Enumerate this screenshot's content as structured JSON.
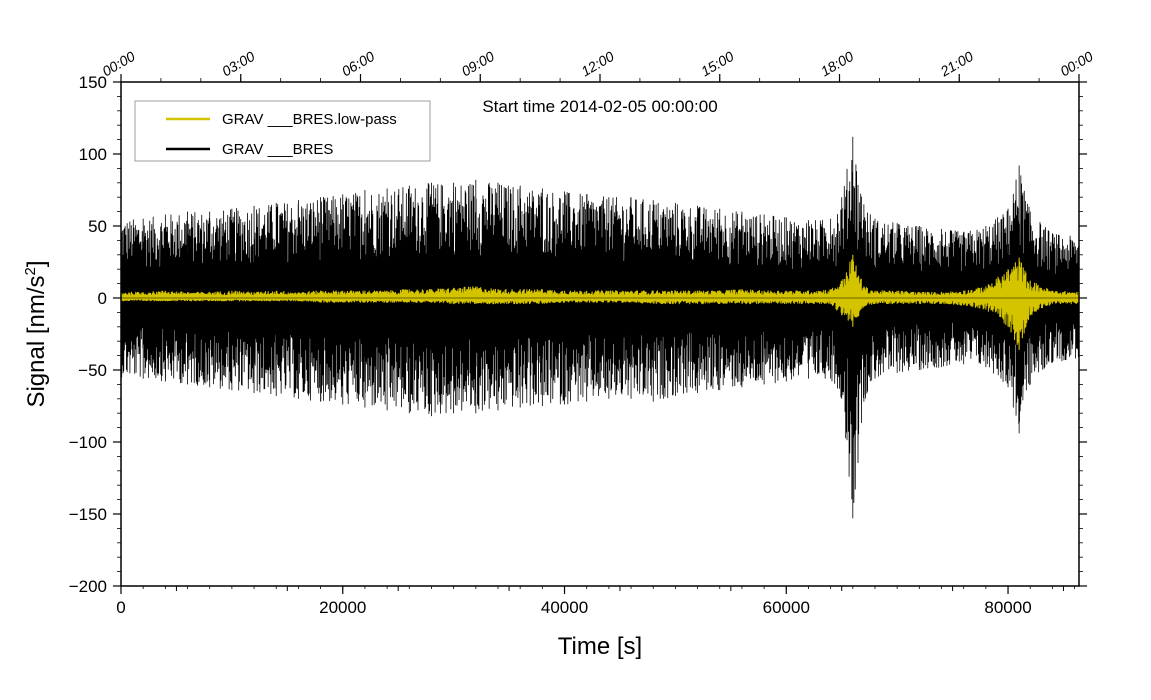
{
  "chart_data": {
    "type": "line",
    "annotation": "Start time 2014-02-05 00:00:00",
    "xlabel": "Time [s]",
    "ylabel_main": "Signal [nm/s",
    "ylabel_sup": "2",
    "ylabel_end": "]",
    "xlim": [
      0,
      86400
    ],
    "ylim": [
      -200,
      150
    ],
    "grid": false,
    "legend_position": "top-left",
    "x_ticks": [
      {
        "value": 0,
        "label": "0"
      },
      {
        "value": 20000,
        "label": "20000"
      },
      {
        "value": 40000,
        "label": "40000"
      },
      {
        "value": 60000,
        "label": "60000"
      },
      {
        "value": 80000,
        "label": "80000"
      }
    ],
    "y_ticks": [
      {
        "value": 150,
        "label": "150"
      },
      {
        "value": 100,
        "label": "100"
      },
      {
        "value": 50,
        "label": "50"
      },
      {
        "value": 0,
        "label": "0"
      },
      {
        "value": -50,
        "label": "−50"
      },
      {
        "value": -100,
        "label": "−100"
      },
      {
        "value": -150,
        "label": "−150"
      },
      {
        "value": -200,
        "label": "−200"
      }
    ],
    "top_axis_ticks": [
      {
        "value": 0,
        "label": "00:00"
      },
      {
        "value": 10800,
        "label": "03:00"
      },
      {
        "value": 21600,
        "label": "06:00"
      },
      {
        "value": 32400,
        "label": "09:00"
      },
      {
        "value": 43200,
        "label": "12:00"
      },
      {
        "value": 54000,
        "label": "15:00"
      },
      {
        "value": 64800,
        "label": "18:00"
      },
      {
        "value": 75600,
        "label": "21:00"
      },
      {
        "value": 86400,
        "label": "00:00"
      }
    ],
    "series": [
      {
        "name": "GRAV ___BRES",
        "color": "#000000",
        "x": [
          0,
          2000,
          4000,
          6000,
          8000,
          10000,
          12000,
          14000,
          16000,
          18000,
          20000,
          22000,
          24000,
          26000,
          28000,
          30000,
          32000,
          34000,
          36000,
          38000,
          40000,
          42000,
          44000,
          46000,
          48000,
          50000,
          52000,
          54000,
          56000,
          58000,
          60000,
          62000,
          64000,
          65000,
          66000,
          67000,
          68000,
          70000,
          72000,
          74000,
          76000,
          78000,
          80000,
          81000,
          82000,
          84000,
          86400
        ],
        "upper": [
          55,
          55,
          58,
          60,
          60,
          62,
          64,
          66,
          68,
          70,
          72,
          75,
          76,
          78,
          80,
          80,
          82,
          80,
          78,
          76,
          74,
          72,
          70,
          70,
          68,
          66,
          64,
          62,
          60,
          58,
          56,
          54,
          55,
          70,
          112,
          65,
          55,
          52,
          50,
          48,
          46,
          50,
          62,
          92,
          60,
          45,
          42
        ],
        "lower": [
          -55,
          -56,
          -58,
          -60,
          -62,
          -64,
          -66,
          -68,
          -70,
          -72,
          -74,
          -76,
          -78,
          -80,
          -82,
          -80,
          -80,
          -78,
          -76,
          -75,
          -74,
          -72,
          -70,
          -70,
          -72,
          -68,
          -66,
          -64,
          -62,
          -60,
          -58,
          -56,
          -56,
          -70,
          -153,
          -72,
          -56,
          -52,
          -50,
          -48,
          -46,
          -48,
          -62,
          -94,
          -60,
          -45,
          -42
        ]
      },
      {
        "name": "GRAV ___BRES.low-pass",
        "color": "#d4c400",
        "x": [
          0,
          2000,
          4000,
          6000,
          8000,
          10000,
          12000,
          14000,
          16000,
          18000,
          20000,
          22000,
          24000,
          26000,
          28000,
          30000,
          32000,
          34000,
          36000,
          38000,
          40000,
          42000,
          44000,
          46000,
          48000,
          50000,
          52000,
          54000,
          56000,
          58000,
          60000,
          62000,
          64000,
          65000,
          66000,
          67000,
          68000,
          70000,
          72000,
          74000,
          76000,
          78000,
          80000,
          81000,
          82000,
          84000,
          86400
        ],
        "upper": [
          4,
          4,
          5,
          4,
          4,
          5,
          4,
          5,
          4,
          5,
          5,
          5,
          5,
          6,
          6,
          7,
          8,
          6,
          6,
          6,
          5,
          5,
          5,
          5,
          5,
          5,
          5,
          5,
          6,
          5,
          5,
          5,
          6,
          12,
          30,
          8,
          5,
          5,
          4,
          4,
          5,
          8,
          20,
          28,
          12,
          5,
          4
        ],
        "lower": [
          -2,
          -2,
          -2,
          -2,
          -2,
          -2,
          -2,
          -2,
          -2,
          -3,
          -3,
          -3,
          -3,
          -3,
          -3,
          -4,
          -4,
          -4,
          -4,
          -4,
          -3,
          -3,
          -3,
          -3,
          -4,
          -4,
          -4,
          -4,
          -4,
          -4,
          -4,
          -4,
          -4,
          -12,
          -20,
          -6,
          -4,
          -4,
          -4,
          -4,
          -5,
          -8,
          -20,
          -36,
          -12,
          -4,
          -4
        ]
      }
    ],
    "legend": [
      {
        "label": "GRAV ___BRES.low-pass",
        "color": "#d4c400"
      },
      {
        "label": "GRAV ___BRES",
        "color": "#000000"
      }
    ]
  }
}
